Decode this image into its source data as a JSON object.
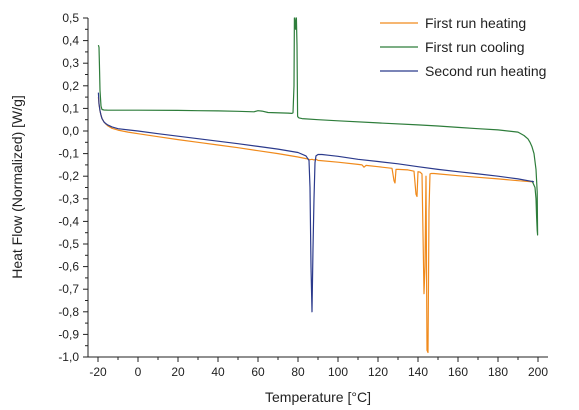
{
  "chart_data": {
    "type": "line",
    "title": "",
    "xlabel": "Temperature [°C]",
    "ylabel": "Heat Flow (Normalized) [W/g]",
    "xlim": [
      -25,
      205
    ],
    "ylim": [
      -1.0,
      0.5
    ],
    "x_ticks": [
      "-20",
      "0",
      "20",
      "40",
      "60",
      "80",
      "100",
      "120",
      "140",
      "160",
      "180",
      "200"
    ],
    "x_tick_values": [
      -20,
      0,
      20,
      40,
      60,
      80,
      100,
      120,
      140,
      160,
      180,
      200
    ],
    "y_ticks": [
      "0,5",
      "0,4",
      "0,3",
      "0,2",
      "0,1",
      "0,0",
      "-0,1",
      "-0,2",
      "-0,3",
      "-0,4",
      "-0,5",
      "-0,6",
      "-0,7",
      "-0,8",
      "-0,9",
      "-1,0"
    ],
    "y_tick_values": [
      0.5,
      0.4,
      0.3,
      0.2,
      0.1,
      0.0,
      -0.1,
      -0.2,
      -0.3,
      -0.4,
      -0.5,
      -0.6,
      -0.7,
      -0.8,
      -0.9,
      -1.0
    ],
    "grid": false,
    "legend_position": "top-right",
    "series": [
      {
        "name": "First run heating",
        "color": "#f08a1c",
        "x": [
          -19.8,
          -19.5,
          -19,
          -18.5,
          -18,
          -17,
          -16,
          -15,
          -13,
          -10,
          -5,
          0,
          10,
          20,
          30,
          40,
          50,
          60,
          70,
          80,
          84,
          86,
          87,
          88,
          89,
          90,
          100,
          110,
          112,
          113,
          114,
          120,
          127,
          128,
          128.5,
          129,
          130,
          135,
          138,
          139,
          139.5,
          140,
          141,
          142,
          143,
          143.5,
          144,
          144.5,
          145,
          145.5,
          146,
          146.5,
          147,
          148,
          150,
          160,
          170,
          180,
          190,
          197
        ],
        "y": [
          0.15,
          0.12,
          0.09,
          0.07,
          0.055,
          0.04,
          0.03,
          0.022,
          0.012,
          0.004,
          -0.005,
          -0.012,
          -0.025,
          -0.038,
          -0.05,
          -0.062,
          -0.074,
          -0.087,
          -0.1,
          -0.115,
          -0.122,
          -0.127,
          -0.125,
          -0.128,
          -0.125,
          -0.13,
          -0.138,
          -0.148,
          -0.15,
          -0.16,
          -0.152,
          -0.158,
          -0.165,
          -0.22,
          -0.23,
          -0.17,
          -0.17,
          -0.172,
          -0.178,
          -0.28,
          -0.29,
          -0.18,
          -0.182,
          -0.19,
          -0.72,
          -0.6,
          -0.2,
          -0.97,
          -0.98,
          -0.35,
          -0.19,
          -0.188,
          -0.188,
          -0.188,
          -0.19,
          -0.198,
          -0.205,
          -0.212,
          -0.22,
          -0.225
        ]
      },
      {
        "name": "First run cooling",
        "color": "#2e7d3b",
        "x": [
          197,
          198.5,
          199,
          199.3,
          199.6,
          199.8,
          199.6,
          199,
          198,
          197,
          196,
          195,
          193,
          190,
          180,
          170,
          160,
          150,
          140,
          120,
          100,
          90,
          82,
          80.5,
          80,
          79.8,
          79.5,
          79.2,
          79,
          78.8,
          78.5,
          78.2,
          78,
          77.5,
          77,
          75,
          65,
          62,
          60,
          58,
          50,
          40,
          30,
          20,
          0,
          -10,
          -15,
          -17,
          -18,
          -18.5,
          -19,
          -19.3,
          -19.5,
          -19.8
        ],
        "y": [
          -0.22,
          -0.25,
          -0.3,
          -0.38,
          -0.44,
          -0.46,
          -0.27,
          -0.17,
          -0.1,
          -0.07,
          -0.05,
          -0.035,
          -0.02,
          -0.005,
          0.005,
          0.01,
          0.016,
          0.022,
          0.027,
          0.036,
          0.045,
          0.05,
          0.055,
          0.058,
          0.062,
          0.065,
          0.38,
          0.5,
          0.5,
          0.45,
          0.48,
          0.5,
          0.2,
          0.08,
          0.078,
          0.079,
          0.082,
          0.088,
          0.09,
          0.085,
          0.087,
          0.089,
          0.09,
          0.091,
          0.092,
          0.092,
          0.092,
          0.093,
          0.095,
          0.11,
          0.18,
          0.3,
          0.37,
          0.38
        ]
      },
      {
        "name": "Second run heating",
        "color": "#2b3a8c",
        "x": [
          -19.8,
          -19.5,
          -19,
          -18.5,
          -18,
          -17,
          -16,
          -15,
          -13,
          -10,
          -5,
          0,
          10,
          20,
          30,
          40,
          50,
          60,
          70,
          80,
          84,
          85.5,
          86,
          86.5,
          87,
          87.5,
          88,
          88.5,
          89,
          90,
          92,
          95,
          100,
          110,
          120,
          130,
          140,
          150,
          160,
          170,
          180,
          190,
          198
        ],
        "y": [
          0.17,
          0.12,
          0.09,
          0.07,
          0.055,
          0.04,
          0.032,
          0.026,
          0.018,
          0.01,
          0.005,
          0.0,
          -0.012,
          -0.023,
          -0.034,
          -0.045,
          -0.056,
          -0.068,
          -0.08,
          -0.095,
          -0.11,
          -0.13,
          -0.25,
          -0.6,
          -0.8,
          -0.52,
          -0.3,
          -0.14,
          -0.11,
          -0.104,
          -0.104,
          -0.107,
          -0.112,
          -0.125,
          -0.135,
          -0.145,
          -0.158,
          -0.17,
          -0.18,
          -0.19,
          -0.2,
          -0.212,
          -0.225
        ]
      }
    ]
  }
}
